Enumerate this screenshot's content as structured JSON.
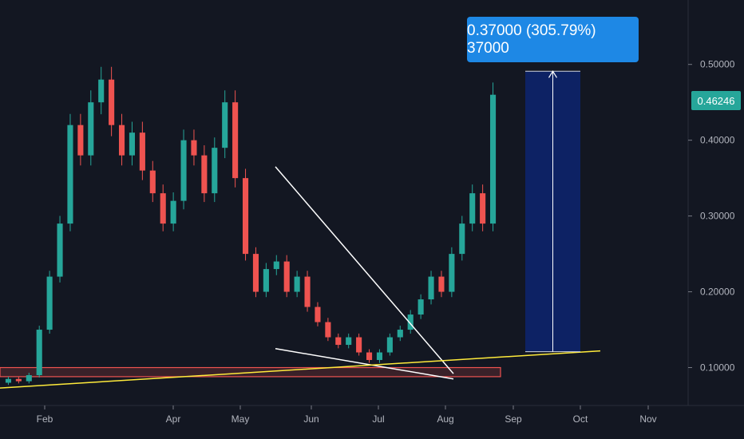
{
  "chart_data": {
    "type": "candlestick",
    "title": "",
    "xlabel": "",
    "ylabel": "",
    "ylim": [
      0.05,
      0.585
    ],
    "x_ticks": [
      "Feb",
      "Apr",
      "May",
      "Jun",
      "Jul",
      "Aug",
      "Sep",
      "Oct",
      "Nov"
    ],
    "y_ticks": [
      "0.50000",
      "0.40000",
      "0.30000",
      "0.20000",
      "0.10000"
    ],
    "y_tick_values": [
      0.5,
      0.4,
      0.3,
      0.2,
      0.1
    ],
    "last_price": "0.46246",
    "last_price_value": 0.46246,
    "measurement": {
      "label": "0.37000 (305.79%) 37000",
      "from": 0.121,
      "to": 0.491
    },
    "support_zone": {
      "low": 0.088,
      "high": 0.1
    },
    "series": [
      {
        "candles": [
          [
            0.08,
            0.085
          ],
          [
            0.085,
            0.082
          ],
          [
            0.082,
            0.09
          ],
          [
            0.09,
            0.15
          ],
          [
            0.15,
            0.22
          ],
          [
            0.22,
            0.29
          ],
          [
            0.29,
            0.42
          ],
          [
            0.42,
            0.38
          ],
          [
            0.38,
            0.45
          ],
          [
            0.45,
            0.48
          ],
          [
            0.48,
            0.42
          ],
          [
            0.42,
            0.38
          ],
          [
            0.38,
            0.41
          ],
          [
            0.41,
            0.36
          ],
          [
            0.36,
            0.33
          ],
          [
            0.33,
            0.29
          ],
          [
            0.29,
            0.32
          ],
          [
            0.32,
            0.4
          ],
          [
            0.4,
            0.38
          ],
          [
            0.38,
            0.33
          ],
          [
            0.33,
            0.39
          ],
          [
            0.39,
            0.45
          ],
          [
            0.45,
            0.35
          ],
          [
            0.35,
            0.25
          ],
          [
            0.25,
            0.2
          ],
          [
            0.2,
            0.23
          ],
          [
            0.23,
            0.24
          ],
          [
            0.24,
            0.2
          ],
          [
            0.2,
            0.22
          ],
          [
            0.22,
            0.18
          ],
          [
            0.18,
            0.16
          ],
          [
            0.16,
            0.14
          ],
          [
            0.14,
            0.13
          ],
          [
            0.13,
            0.14
          ],
          [
            0.14,
            0.12
          ],
          [
            0.12,
            0.11
          ],
          [
            0.11,
            0.12
          ],
          [
            0.12,
            0.14
          ],
          [
            0.14,
            0.15
          ],
          [
            0.15,
            0.17
          ],
          [
            0.17,
            0.19
          ],
          [
            0.19,
            0.22
          ],
          [
            0.22,
            0.2
          ],
          [
            0.2,
            0.25
          ],
          [
            0.25,
            0.29
          ],
          [
            0.29,
            0.33
          ],
          [
            0.33,
            0.29
          ],
          [
            0.29,
            0.46
          ]
        ]
      }
    ],
    "trendlines": [
      {
        "name": "descending-resistance",
        "color": "#ffffff",
        "from": [
          "May",
          0.365
        ],
        "to": [
          "Aug",
          0.092
        ]
      },
      {
        "name": "descending-support",
        "color": "#ffffff",
        "from": [
          "May",
          0.125
        ],
        "to": [
          "Aug",
          0.085
        ]
      },
      {
        "name": "ascending-support",
        "color": "#ffeb3b",
        "from": [
          "Jan",
          0.073
        ],
        "to": [
          "Oct",
          0.122
        ]
      }
    ],
    "colors": {
      "background": "#131722",
      "up": "#26a69a",
      "down": "#ef5350",
      "measure": "#1e88e5",
      "measure_fill": "#0d2470",
      "support_zone": "#ef5350",
      "trend_yellow": "#ffeb3b"
    },
    "grid": false,
    "legend": "none"
  }
}
